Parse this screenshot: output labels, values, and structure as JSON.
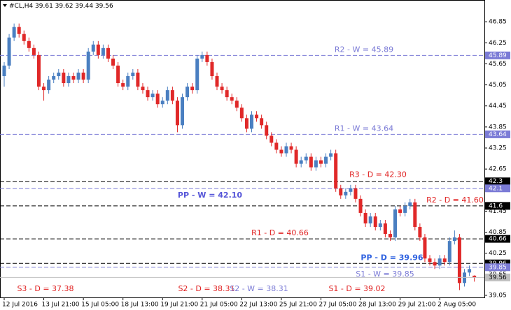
{
  "chart_data": {
    "type": "candlestick",
    "title": "#CL,H4 39.61 39.62 39.44 39.56",
    "categories": [
      "12 Jul 2016",
      null,
      null,
      null,
      null,
      null,
      null,
      null,
      "13 Jul 21:00",
      null,
      null,
      null,
      null,
      null,
      null,
      null,
      "15 Jul 05:00",
      null,
      null,
      null,
      null,
      null,
      null,
      null,
      "18 Jul 13:00",
      null,
      null,
      null,
      null,
      null,
      null,
      null,
      "19 Jul 21:00",
      null,
      null,
      null,
      null,
      null,
      null,
      null,
      "21 Jul 05:00",
      null,
      null,
      null,
      null,
      null,
      null,
      null,
      "22 Jul 13:00",
      null,
      null,
      null,
      null,
      null,
      null,
      null,
      "25 Jul 21:00",
      null,
      null,
      null,
      null,
      null,
      null,
      null,
      "27 Jul 05:00",
      null,
      null,
      null,
      null,
      null,
      null,
      null,
      "28 Jul 13:00",
      null,
      null,
      null,
      null,
      null,
      null,
      null,
      "29 Jul 21:00",
      null,
      null,
      null,
      null,
      null,
      null,
      null,
      "2 Aug 05:00",
      null,
      null,
      null,
      null,
      null,
      null,
      null
    ],
    "open": [
      45.3,
      45.6,
      46.4,
      46.7,
      46.5,
      46.3,
      46.1,
      45.9,
      45.0,
      44.9,
      45.2,
      45.3,
      45.4,
      45.1,
      45.3,
      45.2,
      45.4,
      45.2,
      46.0,
      46.2,
      45.9,
      46.1,
      45.8,
      45.6,
      45.1,
      45.0,
      45.3,
      45.4,
      45.0,
      44.9,
      44.7,
      44.8,
      44.5,
      44.6,
      44.9,
      44.6,
      43.9,
      44.7,
      45.0,
      44.9,
      45.8,
      45.9,
      45.7,
      45.3,
      45.0,
      44.9,
      44.7,
      44.6,
      44.4,
      44.1,
      43.8,
      44.2,
      44.1,
      43.9,
      43.6,
      43.4,
      43.2,
      43.1,
      43.3,
      43.2,
      42.8,
      42.9,
      43.0,
      42.7,
      42.9,
      42.8,
      43.0,
      43.1,
      42.1,
      41.9,
      42.0,
      42.1,
      41.8,
      41.4,
      41.1,
      41.3,
      41.0,
      41.1,
      40.8,
      40.7,
      41.5,
      41.4,
      41.6,
      41.7,
      41.0,
      40.7,
      40.1,
      40.0,
      39.9,
      40.1,
      40.0,
      40.6,
      40.7,
      39.4,
      39.7,
      39.61
    ],
    "high": [
      45.7,
      46.5,
      46.8,
      46.8,
      46.6,
      46.4,
      46.2,
      46.0,
      45.1,
      45.3,
      45.4,
      45.5,
      45.5,
      45.4,
      45.4,
      45.5,
      45.5,
      46.1,
      46.3,
      46.3,
      46.2,
      46.2,
      45.9,
      45.7,
      45.2,
      45.4,
      45.5,
      45.5,
      45.1,
      45.0,
      44.9,
      44.9,
      44.7,
      45.0,
      45.0,
      44.7,
      44.8,
      45.1,
      45.1,
      45.9,
      46.0,
      46.0,
      45.8,
      45.4,
      45.1,
      45.0,
      44.8,
      44.7,
      44.5,
      44.2,
      44.3,
      44.3,
      44.2,
      44.0,
      43.7,
      43.5,
      43.3,
      43.4,
      43.4,
      43.3,
      43.0,
      43.1,
      43.1,
      43.0,
      43.0,
      43.1,
      43.2,
      43.2,
      42.2,
      42.1,
      42.2,
      42.2,
      41.9,
      41.5,
      41.4,
      41.4,
      41.2,
      41.2,
      40.9,
      41.6,
      41.6,
      41.7,
      41.8,
      41.8,
      41.1,
      40.8,
      40.2,
      40.1,
      40.2,
      40.2,
      40.7,
      40.9,
      40.8,
      39.8,
      39.9,
      39.62
    ],
    "low": [
      45.0,
      45.5,
      46.3,
      46.4,
      46.2,
      46.0,
      45.8,
      44.9,
      44.6,
      44.8,
      45.1,
      45.2,
      45.0,
      45.0,
      45.1,
      45.1,
      45.1,
      45.1,
      45.9,
      45.8,
      45.8,
      45.7,
      45.5,
      45.0,
      44.9,
      44.9,
      45.2,
      44.9,
      44.8,
      44.6,
      44.6,
      44.4,
      44.4,
      44.5,
      44.5,
      43.7,
      43.8,
      44.6,
      44.8,
      44.8,
      45.7,
      45.6,
      45.2,
      44.9,
      44.8,
      44.6,
      44.5,
      44.3,
      44.0,
      43.7,
      43.7,
      44.0,
      43.8,
      43.5,
      43.3,
      43.1,
      43.0,
      43.0,
      43.1,
      42.7,
      42.7,
      42.8,
      42.6,
      42.6,
      42.7,
      42.7,
      42.9,
      42.0,
      41.8,
      41.8,
      41.9,
      41.7,
      41.3,
      41.0,
      41.0,
      40.9,
      40.9,
      40.7,
      40.6,
      40.6,
      41.3,
      41.3,
      41.5,
      40.9,
      40.6,
      40.0,
      39.9,
      39.8,
      39.8,
      39.9,
      39.9,
      40.5,
      39.2,
      39.3,
      39.6,
      39.44
    ],
    "close": [
      45.6,
      46.4,
      46.7,
      46.5,
      46.3,
      46.1,
      45.9,
      45.0,
      44.9,
      45.2,
      45.3,
      45.4,
      45.1,
      45.3,
      45.2,
      45.4,
      45.2,
      46.0,
      46.2,
      45.9,
      46.1,
      45.8,
      45.6,
      45.1,
      45.0,
      45.3,
      45.4,
      45.0,
      44.9,
      44.7,
      44.8,
      44.5,
      44.6,
      44.9,
      44.6,
      43.9,
      44.7,
      45.0,
      44.9,
      45.8,
      45.9,
      45.7,
      45.3,
      45.0,
      44.9,
      44.7,
      44.6,
      44.4,
      44.1,
      43.8,
      44.2,
      44.1,
      43.9,
      43.6,
      43.4,
      43.2,
      43.1,
      43.3,
      43.2,
      42.8,
      42.9,
      43.0,
      42.7,
      42.9,
      42.8,
      43.0,
      43.1,
      42.1,
      41.9,
      42.0,
      42.1,
      41.8,
      41.4,
      41.1,
      41.3,
      41.0,
      41.1,
      40.8,
      40.7,
      41.5,
      41.4,
      41.6,
      41.7,
      41.0,
      40.7,
      40.1,
      40.0,
      39.9,
      40.1,
      40.0,
      40.6,
      40.7,
      39.4,
      39.7,
      39.8,
      39.56
    ],
    "up_color": "#4a7fc1",
    "down_color": "#e02828",
    "ylim": [
      38.99,
      47.47
    ],
    "yticks": [
      39.05,
      39.65,
      40.25,
      40.85,
      41.45,
      42.05,
      42.65,
      43.25,
      43.85,
      44.45,
      45.05,
      45.65,
      46.25,
      46.85
    ],
    "levels": [
      {
        "label": "R2 - W = 45.89",
        "value": 45.89,
        "color": "#7b7bd6",
        "text_color": "#7b7bd6",
        "bold": false
      },
      {
        "label": "R1 - W = 43.64",
        "value": 43.64,
        "color": "#7b7bd6",
        "text_color": "#7b7bd6",
        "bold": false
      },
      {
        "label": "R3 - D = 42.30",
        "value": 42.3,
        "color": "#000000",
        "text_color": "#e02020",
        "bold": false
      },
      {
        "label": "PP - W = 42.10",
        "value": 42.1,
        "color": "#7b7bd6",
        "text_color": "#5555d8",
        "bold": true
      },
      {
        "label": "R2 - D = 41.60",
        "value": 41.6,
        "color": "#000000",
        "text_color": "#e02020",
        "bold": false
      },
      {
        "label": "R1 - D = 40.66",
        "value": 40.66,
        "color": "#000000",
        "text_color": "#e02020",
        "bold": false
      },
      {
        "label": "PP - D = 39.96",
        "value": 39.96,
        "color": "#000000",
        "text_color": "#2f62e0",
        "bold": true
      },
      {
        "label": "S1 - W = 39.85",
        "value": 39.85,
        "color": "#7b7bd6",
        "text_color": "#7b7bd6",
        "bold": false
      }
    ],
    "off_chart_levels": [
      {
        "label": "S3 - D = 37.38",
        "text_color": "#e02020"
      },
      {
        "label": "S2 - D = 38.31",
        "text_color": "#e02020"
      },
      {
        "label": "S2 - W = 38.31",
        "text_color": "#7b7bd6"
      },
      {
        "label": "S1 - D = 39.02",
        "text_color": "#e02020"
      }
    ],
    "last": 39.56,
    "last_color": "#c0c0c0"
  }
}
